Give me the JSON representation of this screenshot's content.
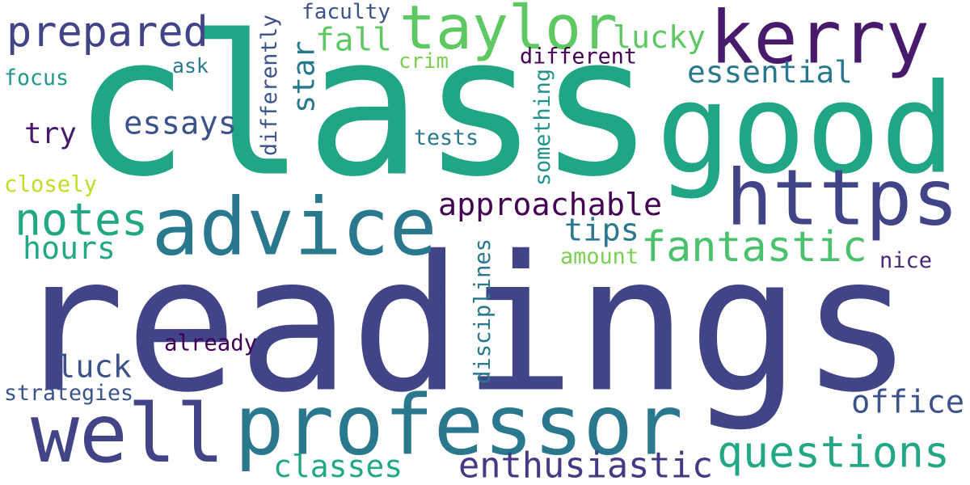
{
  "words": [
    {
      "text": "readings",
      "color": "#414487"
    },
    {
      "text": "class",
      "color": "#21a685"
    },
    {
      "text": "good",
      "color": "#21a685"
    },
    {
      "text": "kerry",
      "color": "#481a6c"
    },
    {
      "text": "https",
      "color": "#414487"
    },
    {
      "text": "advice",
      "color": "#2a788e"
    },
    {
      "text": "professor",
      "color": "#2a788e"
    },
    {
      "text": "well",
      "color": "#414487"
    },
    {
      "text": "taylor",
      "color": "#5ec962"
    },
    {
      "text": "fantastic",
      "color": "#4ac16d"
    },
    {
      "text": "questions",
      "color": "#22a884"
    },
    {
      "text": "prepared",
      "color": "#414487"
    },
    {
      "text": "enthusiastic",
      "color": "#443983"
    },
    {
      "text": "approachable",
      "color": "#440154"
    },
    {
      "text": "notes",
      "color": "#22a884"
    },
    {
      "text": "essential",
      "color": "#2a788e"
    },
    {
      "text": "classes",
      "color": "#22a884"
    },
    {
      "text": "office",
      "color": "#3b528b"
    },
    {
      "text": "essays",
      "color": "#3b528b"
    },
    {
      "text": "hours",
      "color": "#22a884"
    },
    {
      "text": "luck",
      "color": "#3b528b"
    },
    {
      "text": "fall",
      "color": "#5ec962"
    },
    {
      "text": "lucky",
      "color": "#5ec962"
    },
    {
      "text": "star",
      "color": "#2a788e"
    },
    {
      "text": "tips",
      "color": "#2a788e"
    },
    {
      "text": "try",
      "color": "#481a6c"
    },
    {
      "text": "different",
      "color": "#440154"
    },
    {
      "text": "disciplines",
      "color": "#2a788e"
    },
    {
      "text": "something",
      "color": "#21918c"
    },
    {
      "text": "differently",
      "color": "#3b528b"
    },
    {
      "text": "already",
      "color": "#440154"
    },
    {
      "text": "strategies",
      "color": "#3b528b"
    },
    {
      "text": "faculty",
      "color": "#3b528b"
    },
    {
      "text": "tests",
      "color": "#2a788e"
    },
    {
      "text": "nice",
      "color": "#482878"
    },
    {
      "text": "amount",
      "color": "#7ad151"
    },
    {
      "text": "crim",
      "color": "#7ad151"
    },
    {
      "text": "focus",
      "color": "#1f988b"
    },
    {
      "text": "ask",
      "color": "#2a788e"
    },
    {
      "text": "closely",
      "color": "#bddf26"
    }
  ]
}
